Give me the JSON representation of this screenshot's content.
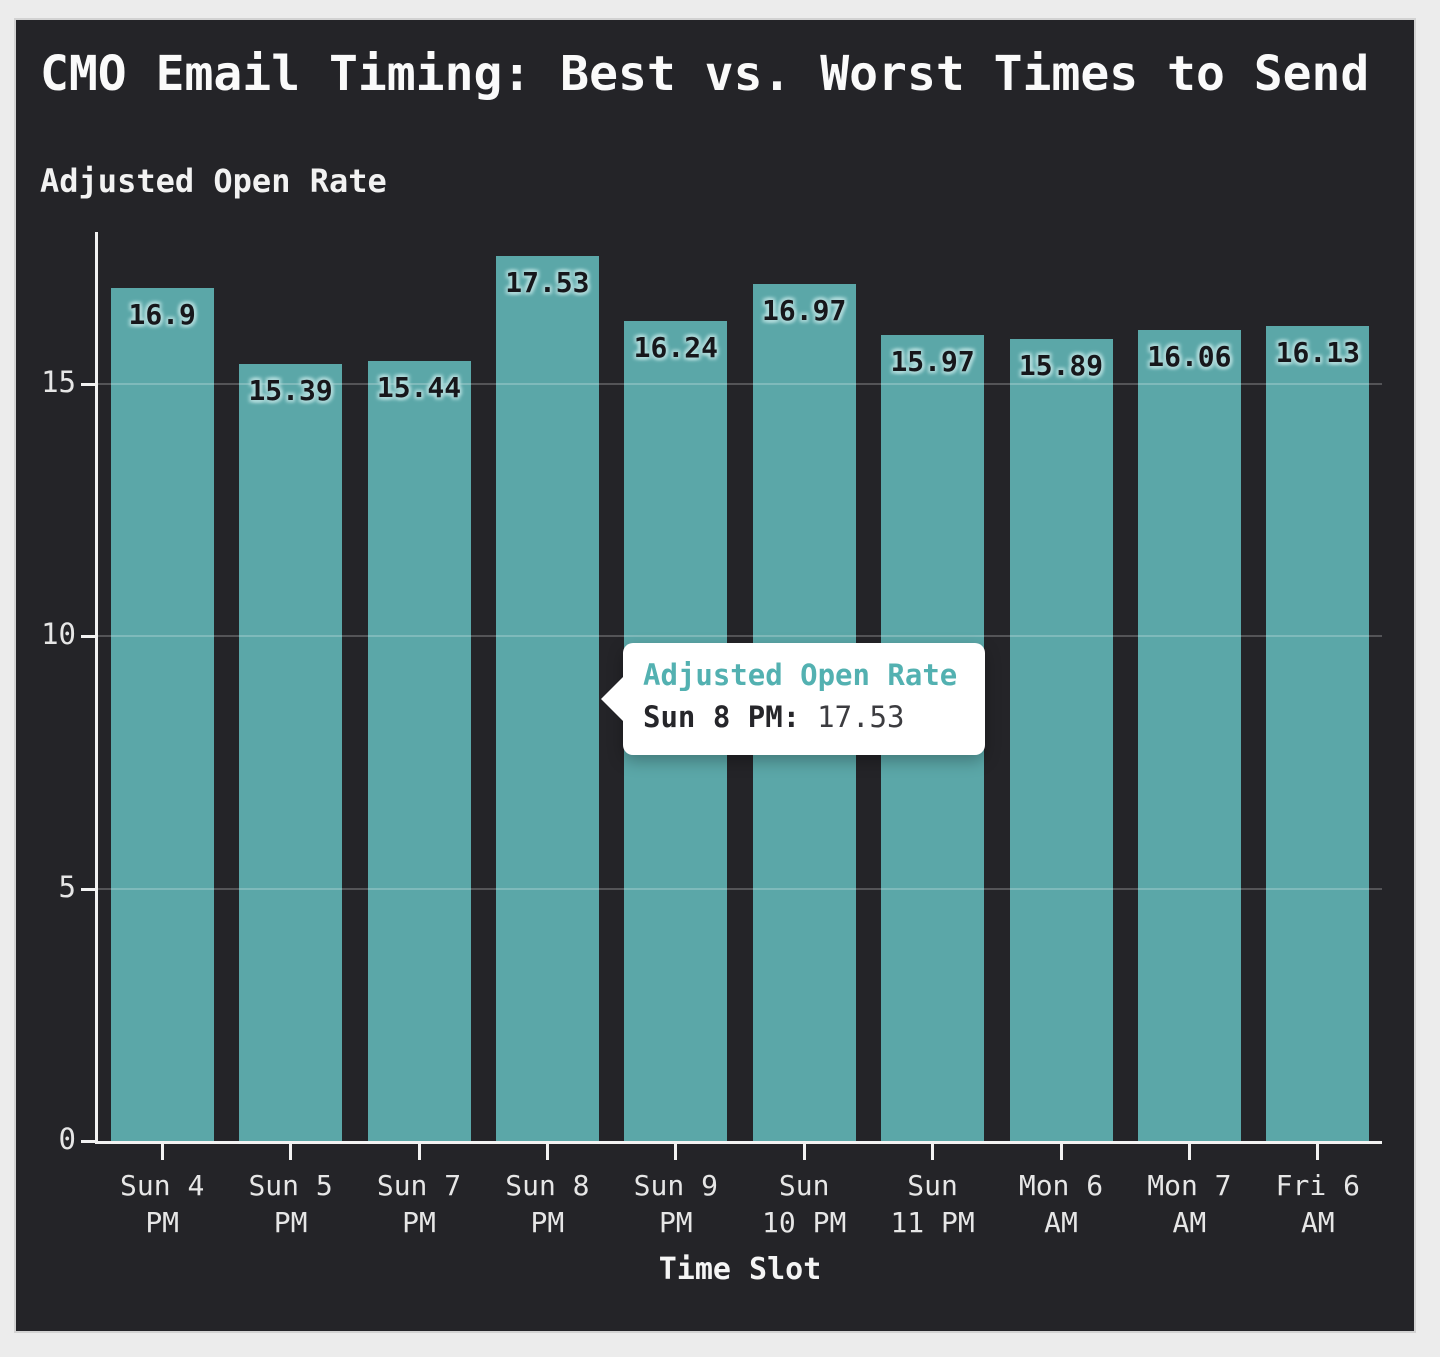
{
  "page": {
    "background": "#ececec",
    "panel_background": "#242428"
  },
  "chart_data": {
    "type": "bar",
    "title": "CMO Email Timing: Best vs. Worst Times to Send",
    "ylabel": "Adjusted Open Rate",
    "xlabel": "Time Slot",
    "series_name": "Adjusted Open Rate",
    "categories": [
      "Sun 4 PM",
      "Sun 5 PM",
      "Sun 7 PM",
      "Sun 8 PM",
      "Sun 9 PM",
      "Sun 10 PM",
      "Sun 11 PM",
      "Mon 6 AM",
      "Mon 7 AM",
      "Fri 6 AM"
    ],
    "category_lines": [
      [
        "Sun 4",
        "PM"
      ],
      [
        "Sun 5",
        "PM"
      ],
      [
        "Sun 7",
        "PM"
      ],
      [
        "Sun 8",
        "PM"
      ],
      [
        "Sun 9",
        "PM"
      ],
      [
        "Sun",
        "10 PM"
      ],
      [
        "Sun",
        "11 PM"
      ],
      [
        "Mon 6",
        "AM"
      ],
      [
        "Mon 7",
        "AM"
      ],
      [
        "Fri 6",
        "AM"
      ]
    ],
    "values": [
      16.9,
      15.39,
      15.44,
      17.53,
      16.24,
      16.97,
      15.97,
      15.89,
      16.06,
      16.13
    ],
    "value_labels": [
      "16.9",
      "15.39",
      "15.44",
      "17.53",
      "16.24",
      "16.97",
      "15.97",
      "15.89",
      "16.06",
      "16.13"
    ],
    "ylim": [
      0,
      18
    ],
    "ytick_values": [
      0,
      5,
      10,
      15
    ],
    "ytick_labels": [
      "0",
      "5",
      "10",
      "15"
    ],
    "gridline_values": [
      5,
      10,
      15
    ],
    "grid": true,
    "legend_position": "none",
    "bar_color": "#5ba7a8",
    "value_label_color": "#17171b",
    "value_label_halo": "#aedada"
  },
  "tooltip": {
    "series": "Adjusted Open Rate",
    "label": "Sun 8 PM:",
    "value": "17.53",
    "accent_color": "#53b1b1"
  }
}
